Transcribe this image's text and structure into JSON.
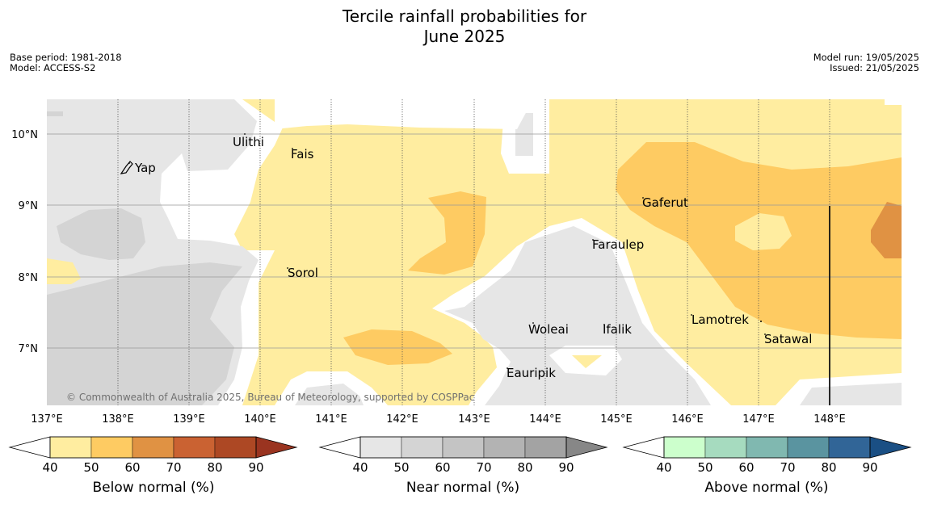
{
  "title": {
    "line1": "Tercile rainfall probabilities for",
    "line2": "June 2025"
  },
  "meta": {
    "base_period": "Base period: 1981-2018",
    "model": "Model: ACCESS-S2",
    "model_run": "Model run: 19/05/2025",
    "issued": "Issued: 21/05/2025"
  },
  "map": {
    "lon_labels": [
      "137°E",
      "138°E",
      "139°E",
      "140°E",
      "141°E",
      "142°E",
      "143°E",
      "144°E",
      "145°E",
      "146°E",
      "147°E",
      "148°E"
    ],
    "lat_labels": [
      "10°N",
      "9°N",
      "8°N",
      "7°N"
    ],
    "places": [
      "Yap",
      "Ulithi",
      "Fais",
      "Sorol",
      "Gaferut",
      "Faraulep",
      "Woleai",
      "Ifalik",
      "Eauripik",
      "Lamotrek",
      "Satawal"
    ],
    "credit": "© Commonwealth of Australia 2025, Bureau of Meteorology, supported by COSPPac"
  },
  "legends": [
    {
      "label": "Below normal (%)",
      "ticks": [
        "40",
        "50",
        "60",
        "70",
        "80",
        "90"
      ],
      "colors": [
        "#ffeda0",
        "#fecb62",
        "#e09243",
        "#ca6232",
        "#ad4824",
        "#9a3420"
      ]
    },
    {
      "label": "Near normal (%)",
      "ticks": [
        "40",
        "50",
        "60",
        "70",
        "80",
        "90"
      ],
      "colors": [
        "#e6e6e6",
        "#d4d4d4",
        "#c4c4c4",
        "#b3b3b3",
        "#a3a3a3",
        "#878787"
      ]
    },
    {
      "label": "Above normal (%)",
      "ticks": [
        "40",
        "50",
        "60",
        "70",
        "80",
        "90"
      ],
      "colors": [
        "#ccffcc",
        "#a6dbbf",
        "#80b8b0",
        "#5a94a0",
        "#316597",
        "#1a4f84"
      ]
    }
  ]
}
